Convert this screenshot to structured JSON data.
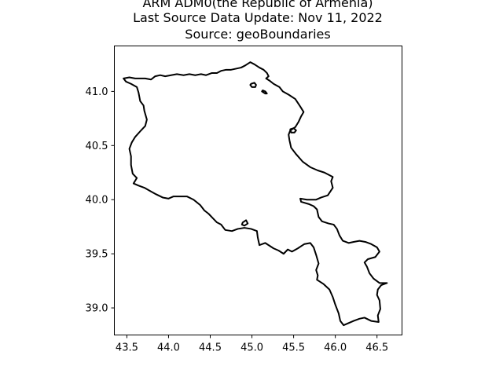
{
  "title": {
    "line1": "ARM ADM0(the Republic of Armenia)",
    "line2": "Last Source Data Update: Nov 11, 2022",
    "line3": "Source: geoBoundaries"
  },
  "chart_data": {
    "type": "map",
    "title": "ARM ADM0(the Republic of Armenia)\nLast Source Data Update: Nov 11, 2022\nSource: geoBoundaries",
    "xlabel": "",
    "ylabel": "",
    "xlim": [
      43.35,
      46.8
    ],
    "ylim": [
      38.75,
      41.42
    ],
    "x_ticks": [
      43.5,
      44.0,
      44.5,
      45.0,
      45.5,
      46.0,
      46.5
    ],
    "x_tick_labels": [
      "43.5",
      "44.0",
      "44.5",
      "45.0",
      "45.5",
      "46.0",
      "46.5"
    ],
    "y_ticks": [
      39.0,
      39.5,
      40.0,
      40.5,
      41.0
    ],
    "y_tick_labels": [
      "39.0",
      "39.5",
      "40.0",
      "40.5",
      "41.0"
    ],
    "grid": false,
    "line_color": "#000000",
    "boundaries": [
      {
        "name": "mainland",
        "points": [
          [
            43.46,
            41.12
          ],
          [
            43.53,
            41.13
          ],
          [
            43.6,
            41.12
          ],
          [
            43.66,
            41.12
          ],
          [
            43.72,
            41.12
          ],
          [
            43.79,
            41.11
          ],
          [
            43.84,
            41.14
          ],
          [
            43.9,
            41.15
          ],
          [
            43.96,
            41.14
          ],
          [
            44.03,
            41.15
          ],
          [
            44.1,
            41.16
          ],
          [
            44.18,
            41.15
          ],
          [
            44.25,
            41.16
          ],
          [
            44.32,
            41.15
          ],
          [
            44.39,
            41.16
          ],
          [
            44.45,
            41.15
          ],
          [
            44.52,
            41.17
          ],
          [
            44.58,
            41.17
          ],
          [
            44.63,
            41.19
          ],
          [
            44.69,
            41.2
          ],
          [
            44.75,
            41.2
          ],
          [
            44.81,
            41.21
          ],
          [
            44.87,
            41.22
          ],
          [
            44.92,
            41.24
          ],
          [
            44.98,
            41.27
          ],
          [
            45.03,
            41.25
          ],
          [
            45.09,
            41.22
          ],
          [
            45.14,
            41.2
          ],
          [
            45.18,
            41.17
          ],
          [
            45.2,
            41.14
          ],
          [
            45.17,
            41.12
          ],
          [
            45.21,
            41.1
          ],
          [
            45.26,
            41.07
          ],
          [
            45.33,
            41.04
          ],
          [
            45.37,
            41.0
          ],
          [
            45.44,
            40.97
          ],
          [
            45.52,
            40.93
          ],
          [
            45.58,
            40.86
          ],
          [
            45.62,
            40.81
          ],
          [
            45.59,
            40.77
          ],
          [
            45.56,
            40.72
          ],
          [
            45.52,
            40.67
          ],
          [
            45.46,
            40.64
          ],
          [
            45.44,
            40.6
          ],
          [
            45.45,
            40.55
          ],
          [
            45.47,
            40.48
          ],
          [
            45.53,
            40.42
          ],
          [
            45.61,
            40.35
          ],
          [
            45.7,
            40.3
          ],
          [
            45.79,
            40.27
          ],
          [
            45.87,
            40.25
          ],
          [
            45.92,
            40.23
          ],
          [
            45.97,
            40.21
          ],
          [
            45.95,
            40.17
          ],
          [
            45.97,
            40.11
          ],
          [
            45.91,
            40.04
          ],
          [
            45.83,
            40.02
          ],
          [
            45.77,
            40.0
          ],
          [
            45.71,
            40.0
          ],
          [
            45.66,
            40.0
          ],
          [
            45.58,
            40.01
          ],
          [
            45.59,
            39.98
          ],
          [
            45.68,
            39.96
          ],
          [
            45.74,
            39.94
          ],
          [
            45.78,
            39.91
          ],
          [
            45.8,
            39.84
          ],
          [
            45.84,
            39.8
          ],
          [
            45.92,
            39.78
          ],
          [
            45.98,
            39.77
          ],
          [
            46.02,
            39.73
          ],
          [
            46.05,
            39.67
          ],
          [
            46.09,
            39.62
          ],
          [
            46.16,
            39.6
          ],
          [
            46.22,
            39.61
          ],
          [
            46.29,
            39.62
          ],
          [
            46.36,
            39.61
          ],
          [
            46.43,
            39.59
          ],
          [
            46.5,
            39.56
          ],
          [
            46.53,
            39.52
          ],
          [
            46.48,
            39.47
          ],
          [
            46.39,
            39.45
          ],
          [
            46.35,
            39.42
          ],
          [
            46.38,
            39.38
          ],
          [
            46.41,
            39.32
          ],
          [
            46.46,
            39.27
          ],
          [
            46.53,
            39.23
          ],
          [
            46.62,
            39.23
          ],
          [
            46.55,
            39.21
          ],
          [
            46.51,
            39.17
          ],
          [
            46.5,
            39.12
          ],
          [
            46.53,
            39.07
          ],
          [
            46.54,
            38.99
          ],
          [
            46.51,
            38.93
          ],
          [
            46.52,
            38.87
          ],
          [
            46.43,
            38.88
          ],
          [
            46.35,
            38.91
          ],
          [
            46.29,
            38.9
          ],
          [
            46.22,
            38.88
          ],
          [
            46.16,
            38.86
          ],
          [
            46.1,
            38.84
          ],
          [
            46.06,
            38.88
          ],
          [
            46.04,
            38.95
          ],
          [
            46.0,
            39.03
          ],
          [
            45.97,
            39.1
          ],
          [
            45.93,
            39.17
          ],
          [
            45.86,
            39.22
          ],
          [
            45.78,
            39.26
          ],
          [
            45.79,
            39.3
          ],
          [
            45.77,
            39.35
          ],
          [
            45.8,
            39.41
          ],
          [
            45.77,
            39.49
          ],
          [
            45.74,
            39.56
          ],
          [
            45.7,
            39.6
          ],
          [
            45.63,
            39.59
          ],
          [
            45.55,
            39.55
          ],
          [
            45.48,
            39.52
          ],
          [
            45.43,
            39.54
          ],
          [
            45.38,
            39.5
          ],
          [
            45.32,
            39.53
          ],
          [
            45.26,
            39.55
          ],
          [
            45.2,
            39.58
          ],
          [
            45.16,
            39.6
          ],
          [
            45.09,
            39.58
          ],
          [
            45.07,
            39.65
          ],
          [
            45.06,
            39.71
          ],
          [
            44.99,
            39.73
          ],
          [
            44.91,
            39.74
          ],
          [
            44.83,
            39.73
          ],
          [
            44.76,
            39.71
          ],
          [
            44.68,
            39.72
          ],
          [
            44.63,
            39.77
          ],
          [
            44.58,
            39.79
          ],
          [
            44.53,
            39.83
          ],
          [
            44.48,
            39.87
          ],
          [
            44.43,
            39.9
          ],
          [
            44.38,
            39.95
          ],
          [
            44.3,
            40.0
          ],
          [
            44.22,
            40.03
          ],
          [
            44.13,
            40.03
          ],
          [
            44.06,
            40.03
          ],
          [
            44.0,
            40.01
          ],
          [
            43.93,
            40.02
          ],
          [
            43.85,
            40.05
          ],
          [
            43.78,
            40.08
          ],
          [
            43.71,
            40.11
          ],
          [
            43.64,
            40.13
          ],
          [
            43.58,
            40.15
          ],
          [
            43.62,
            40.2
          ],
          [
            43.57,
            40.24
          ],
          [
            43.55,
            40.32
          ],
          [
            43.55,
            40.4
          ],
          [
            43.53,
            40.47
          ],
          [
            43.56,
            40.53
          ],
          [
            43.6,
            40.58
          ],
          [
            43.67,
            40.64
          ],
          [
            43.72,
            40.68
          ],
          [
            43.74,
            40.74
          ],
          [
            43.71,
            40.82
          ],
          [
            43.7,
            40.87
          ],
          [
            43.66,
            40.91
          ],
          [
            43.64,
            40.99
          ],
          [
            43.62,
            41.04
          ],
          [
            43.55,
            41.07
          ],
          [
            43.49,
            41.09
          ],
          [
            43.46,
            41.12
          ]
        ]
      },
      {
        "name": "exclave-karki",
        "points": [
          [
            44.89,
            39.79
          ],
          [
            44.93,
            39.81
          ],
          [
            44.95,
            39.78
          ],
          [
            44.91,
            39.76
          ],
          [
            44.88,
            39.77
          ],
          [
            44.89,
            39.79
          ]
        ]
      },
      {
        "name": "exclave-north-1",
        "points": [
          [
            44.99,
            41.07
          ],
          [
            45.03,
            41.08
          ],
          [
            45.05,
            41.06
          ],
          [
            45.04,
            41.04
          ],
          [
            45.0,
            41.04
          ],
          [
            44.98,
            41.06
          ],
          [
            44.99,
            41.07
          ]
        ]
      },
      {
        "name": "exclave-north-2",
        "points": [
          [
            45.13,
            41.01
          ],
          [
            45.16,
            41.0
          ],
          [
            45.18,
            40.98
          ],
          [
            45.16,
            40.98
          ],
          [
            45.12,
            41.0
          ],
          [
            45.13,
            41.01
          ]
        ]
      },
      {
        "name": "exclave-artsvashen",
        "points": [
          [
            45.46,
            40.65
          ],
          [
            45.5,
            40.66
          ],
          [
            45.53,
            40.64
          ],
          [
            45.51,
            40.62
          ],
          [
            45.47,
            40.62
          ],
          [
            45.46,
            40.65
          ]
        ]
      }
    ]
  }
}
